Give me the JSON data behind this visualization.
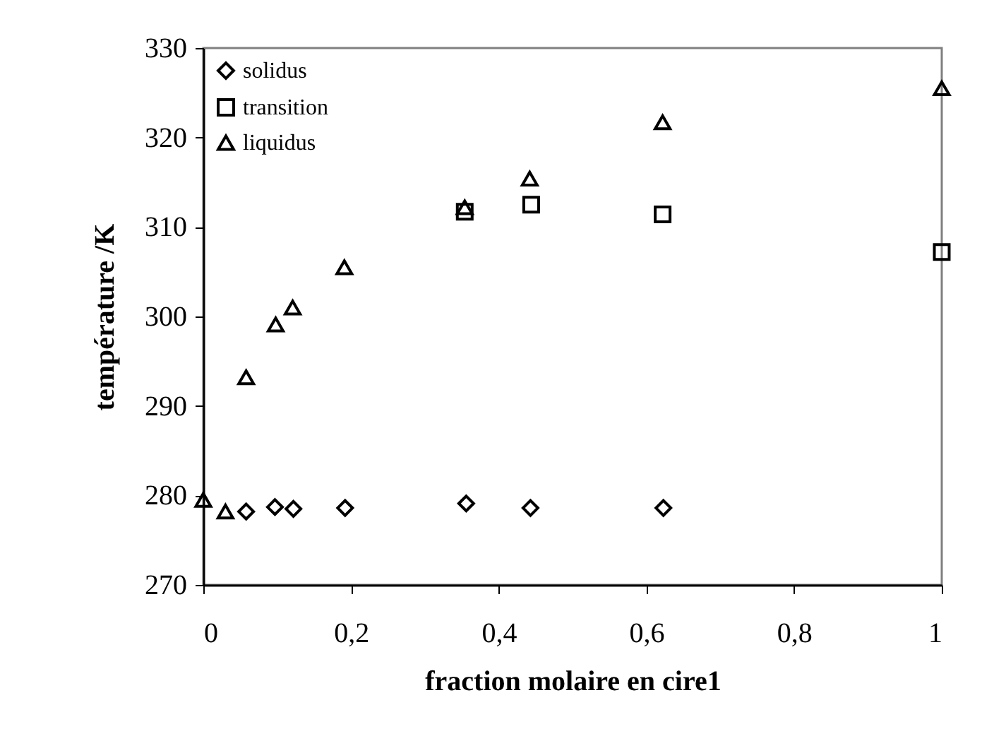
{
  "chart_data": {
    "type": "scatter",
    "xlabel": "fraction molaire en cire1",
    "ylabel": "température /K",
    "legend": "top left",
    "xlim": [
      0,
      1
    ],
    "xticks": [
      0,
      {
        "value": 0.2,
        "label": "0,2"
      },
      {
        "value": 0.4,
        "label": "0,4"
      },
      {
        "value": 0.6,
        "label": "0,6"
      },
      {
        "value": 0.8,
        "label": "0,8"
      },
      1
    ],
    "ylim": [
      270,
      330
    ],
    "yticks": [
      270,
      280,
      290,
      300,
      310,
      320,
      330
    ],
    "series": [
      {
        "name": "solidus",
        "color": "#000000",
        "marker": "diamond",
        "x": [
          0.058,
          0.097,
          0.122,
          0.192,
          0.356,
          0.443,
          0.623
        ],
        "values": [
          278.2,
          278.7,
          278.5,
          278.6,
          279.1,
          278.6,
          278.6
        ]
      },
      {
        "name": "transition",
        "color": "#000000",
        "marker": "square",
        "x": [
          0.354,
          0.444,
          0.622,
          1.0
        ],
        "values": [
          311.7,
          312.5,
          311.4,
          307.2
        ]
      },
      {
        "name": "liquidus",
        "color": "#000000",
        "marker": "triangle",
        "x": [
          0,
          0.03,
          0.058,
          0.098,
          0.121,
          0.191,
          0.354,
          0.442,
          0.622,
          1.0
        ],
        "values": [
          279.5,
          278.2,
          293.2,
          299.1,
          301.0,
          305.5,
          312.2,
          315.4,
          321.7,
          325.5
        ]
      }
    ]
  }
}
